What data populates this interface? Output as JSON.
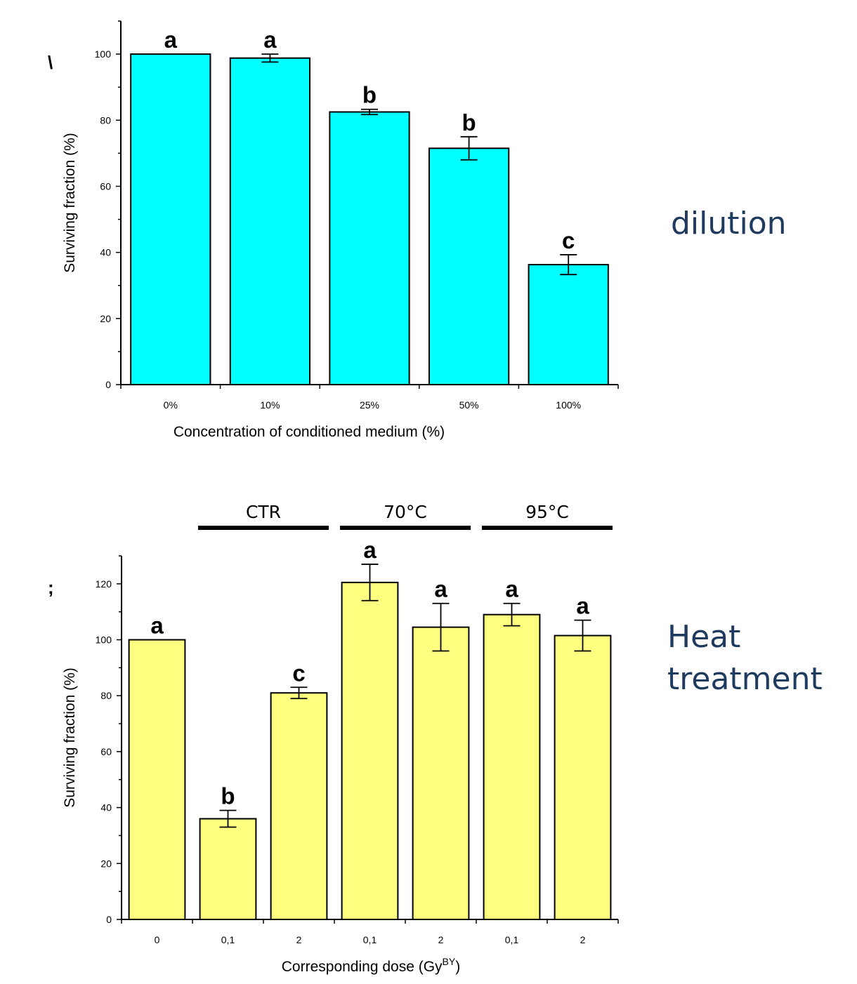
{
  "side_labels": {
    "dilution": "dilution",
    "heat_line1": "Heat",
    "heat_line2": "treatment"
  },
  "panel_fragments": {
    "top": "\\",
    "bottom": ";"
  },
  "colors": {
    "top_bar": "#00ffff",
    "bottom_bar": "#ffff80",
    "side_text": "#1f3a5f",
    "ink": "#000000"
  },
  "chart_data": [
    {
      "type": "bar",
      "title": "",
      "categories": [
        "0%",
        "10%",
        "25%",
        "50%",
        "100%"
      ],
      "values": [
        100,
        98.8,
        82.5,
        71.5,
        36.3
      ],
      "errors": [
        0,
        1.2,
        0.8,
        3.5,
        3.0
      ],
      "letters": [
        "a",
        "a",
        "b",
        "b",
        "c"
      ],
      "xlabel": "Concentration of conditioned medium (%)",
      "ylabel": "Surviving fraction (%)",
      "ylim": [
        0,
        110
      ],
      "yticks": [
        0,
        20,
        40,
        60,
        80,
        100
      ],
      "grid": false,
      "bar_color": "#00ffff"
    },
    {
      "type": "bar",
      "title": "",
      "categories": [
        "0",
        "0,1",
        "2",
        "0,1",
        "2",
        "0,1",
        "2"
      ],
      "values": [
        100,
        36,
        81,
        120.5,
        104.5,
        109,
        101.5
      ],
      "errors": [
        0,
        3,
        2,
        6.5,
        8.5,
        4,
        5.5
      ],
      "letters": [
        "a",
        "b",
        "c",
        "a",
        "a",
        "a",
        "a"
      ],
      "groups": [
        {
          "label": "CTR",
          "categories": [
            1,
            2
          ]
        },
        {
          "label": "70°C",
          "categories": [
            3,
            4
          ]
        },
        {
          "label": "95°C",
          "categories": [
            5,
            6
          ]
        }
      ],
      "xlabel_main": "Corresponding dose (Gy",
      "xlabel_sup": "BY",
      "xlabel_end": ")",
      "ylabel": "Surviving fraction (%)",
      "ylim": [
        0,
        130
      ],
      "yticks": [
        0,
        20,
        40,
        60,
        80,
        100,
        120
      ],
      "grid": false,
      "bar_color": "#ffff80"
    }
  ]
}
